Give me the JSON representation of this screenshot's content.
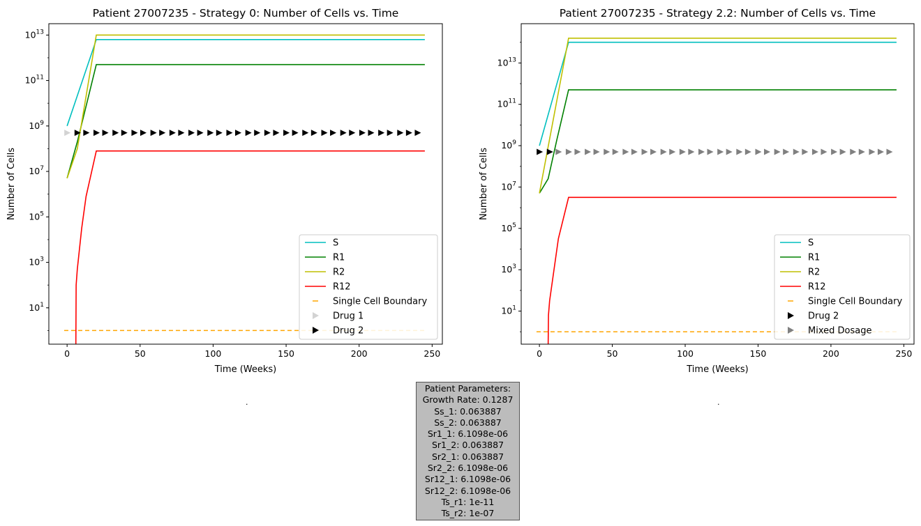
{
  "chart_data": [
    {
      "type": "line",
      "title": "Patient 27007235 - Strategy 0: Number of Cells vs. Time",
      "xlabel": "Time (Weeks)",
      "ylabel": "Number of Cells",
      "xlim": [
        -12.5,
        257
      ],
      "ylim_log10": [
        -0.6,
        13.5
      ],
      "yscale": "log",
      "xticks": [
        0,
        50,
        100,
        150,
        200,
        250
      ],
      "yticks": [
        1,
        3,
        5,
        7,
        9,
        11,
        13
      ],
      "series": [
        {
          "name": "S",
          "color": "#00bfbf",
          "style": "line",
          "x": [
            0,
            20,
            245
          ],
          "y_log10": [
            9.0,
            12.8,
            12.8
          ]
        },
        {
          "name": "R1",
          "color": "#008000",
          "style": "line",
          "x": [
            0,
            7,
            20,
            245
          ],
          "y_log10": [
            6.7,
            8.3,
            11.7,
            11.7
          ]
        },
        {
          "name": "R2",
          "color": "#bfbf00",
          "style": "line",
          "x": [
            0,
            7,
            20,
            245
          ],
          "y_log10": [
            6.7,
            8.0,
            13.0,
            13.0
          ]
        },
        {
          "name": "R12",
          "color": "#ff0000",
          "style": "line",
          "x": [
            6,
            6.2,
            7,
            10,
            13,
            20,
            245
          ],
          "y_log10": [
            -0.6,
            2.0,
            2.7,
            4.5,
            5.9,
            7.9,
            7.9
          ]
        },
        {
          "name": "Single Cell Boundary",
          "color": "#ffa500",
          "style": "dashed",
          "x": [
            -2,
            245
          ],
          "y_log10": [
            0,
            0
          ]
        },
        {
          "name": "Drug 1",
          "color": "#d3d3d3",
          "style": "marker",
          "x": [
            0
          ],
          "y_log10": [
            8.7
          ]
        },
        {
          "name": "Drug 2",
          "color": "#000000",
          "style": "marker",
          "x": [
            7,
            13,
            20,
            26,
            33,
            39,
            46,
            52,
            59,
            65,
            72,
            78,
            85,
            91,
            98,
            104,
            111,
            117,
            124,
            130,
            137,
            143,
            150,
            156,
            163,
            169,
            176,
            182,
            189,
            195,
            202,
            208,
            215,
            221,
            228,
            234,
            240
          ],
          "y_log10": [
            8.7
          ]
        }
      ],
      "legend": "lower-right"
    },
    {
      "type": "line",
      "title": "Patient 27007235 - Strategy 2.2: Number of Cells vs. Time",
      "xlabel": "Time (Weeks)",
      "ylabel": "Number of Cells",
      "xlim": [
        -12.5,
        257
      ],
      "ylim_log10": [
        -0.6,
        14.9
      ],
      "yscale": "log",
      "xticks": [
        0,
        50,
        100,
        150,
        200,
        250
      ],
      "yticks": [
        1,
        3,
        5,
        7,
        9,
        11,
        13
      ],
      "series": [
        {
          "name": "S",
          "color": "#00bfbf",
          "style": "line",
          "x": [
            0,
            20,
            245
          ],
          "y_log10": [
            9.0,
            14.0,
            14.0
          ]
        },
        {
          "name": "R1",
          "color": "#008000",
          "style": "line",
          "x": [
            0,
            6,
            12,
            20,
            245
          ],
          "y_log10": [
            6.7,
            7.4,
            9.3,
            11.7,
            11.7
          ]
        },
        {
          "name": "R2",
          "color": "#bfbf00",
          "style": "line",
          "x": [
            0,
            20,
            245
          ],
          "y_log10": [
            6.7,
            14.2,
            14.2
          ]
        },
        {
          "name": "R12",
          "color": "#ff0000",
          "style": "line",
          "x": [
            6,
            6.2,
            7,
            10,
            13,
            20,
            245
          ],
          "y_log10": [
            -0.6,
            0.8,
            1.5,
            3.0,
            4.5,
            6.5,
            6.5
          ]
        },
        {
          "name": "Single Cell Boundary",
          "color": "#ffa500",
          "style": "dashed",
          "x": [
            -2,
            245
          ],
          "y_log10": [
            0,
            0
          ]
        },
        {
          "name": "Drug 2",
          "color": "#000000",
          "style": "marker",
          "x": [
            0,
            7
          ],
          "y_log10": [
            8.7
          ]
        },
        {
          "name": "Mixed Dosage",
          "color": "#808080",
          "style": "marker",
          "x": [
            13,
            20,
            26,
            33,
            39,
            46,
            52,
            59,
            65,
            72,
            78,
            85,
            91,
            98,
            104,
            111,
            117,
            124,
            130,
            137,
            143,
            150,
            156,
            163,
            169,
            176,
            182,
            189,
            195,
            202,
            208,
            215,
            221,
            228,
            234,
            240
          ],
          "y_log10": [
            8.7
          ]
        }
      ],
      "legend": "lower-right"
    }
  ],
  "params": {
    "lines": [
      "Patient Parameters:",
      "Growth Rate: 0.1287",
      "Ss_1: 0.063887",
      "Ss_2: 0.063887",
      "Sr1_1: 6.1098e-06",
      "Sr1_2: 0.063887",
      "Sr2_1: 0.063887",
      "Sr2_2: 6.1098e-06",
      "Sr12_1: 6.1098e-06",
      "Sr12_2: 6.1098e-06",
      "Ts_r1: 1e-11",
      "Ts_r2: 1e-07"
    ]
  },
  "placeholders": {
    "left": ".",
    "right": "."
  }
}
